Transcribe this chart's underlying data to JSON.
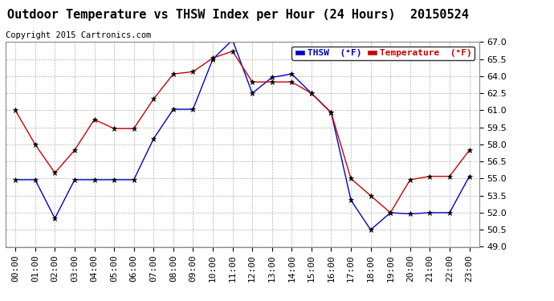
{
  "title": "Outdoor Temperature vs THSW Index per Hour (24 Hours)  20150524",
  "copyright": "Copyright 2015 Cartronics.com",
  "background_color": "#ffffff",
  "plot_bg_color": "#ffffff",
  "grid_color": "#aaaaaa",
  "ylim": [
    49.0,
    67.0
  ],
  "yticks": [
    49.0,
    50.5,
    52.0,
    53.5,
    55.0,
    56.5,
    58.0,
    59.5,
    61.0,
    62.5,
    64.0,
    65.5,
    67.0
  ],
  "hours": [
    "00:00",
    "01:00",
    "02:00",
    "03:00",
    "04:00",
    "05:00",
    "06:00",
    "07:00",
    "08:00",
    "09:00",
    "10:00",
    "11:00",
    "12:00",
    "13:00",
    "14:00",
    "15:00",
    "16:00",
    "17:00",
    "18:00",
    "19:00",
    "20:00",
    "21:00",
    "22:00",
    "23:00"
  ],
  "thsw": [
    54.9,
    54.9,
    51.5,
    54.9,
    54.9,
    54.9,
    54.9,
    58.5,
    61.1,
    61.1,
    65.5,
    67.2,
    62.5,
    63.9,
    64.2,
    62.5,
    60.8,
    53.1,
    50.5,
    52.0,
    51.9,
    52.0,
    52.0,
    55.2
  ],
  "temperature": [
    61.0,
    58.0,
    55.5,
    57.5,
    60.2,
    59.4,
    59.4,
    62.0,
    64.2,
    64.4,
    65.6,
    66.2,
    63.5,
    63.5,
    63.5,
    62.5,
    60.8,
    55.0,
    53.5,
    52.0,
    54.9,
    55.2,
    55.2,
    57.5
  ],
  "thsw_color": "#0000cc",
  "temp_color": "#cc0000",
  "marker_color": "#000000",
  "legend_thsw_bg": "#0000cc",
  "legend_temp_bg": "#cc0000",
  "title_fontsize": 11,
  "copyright_fontsize": 7.5,
  "tick_fontsize": 8,
  "legend_fontsize": 8
}
